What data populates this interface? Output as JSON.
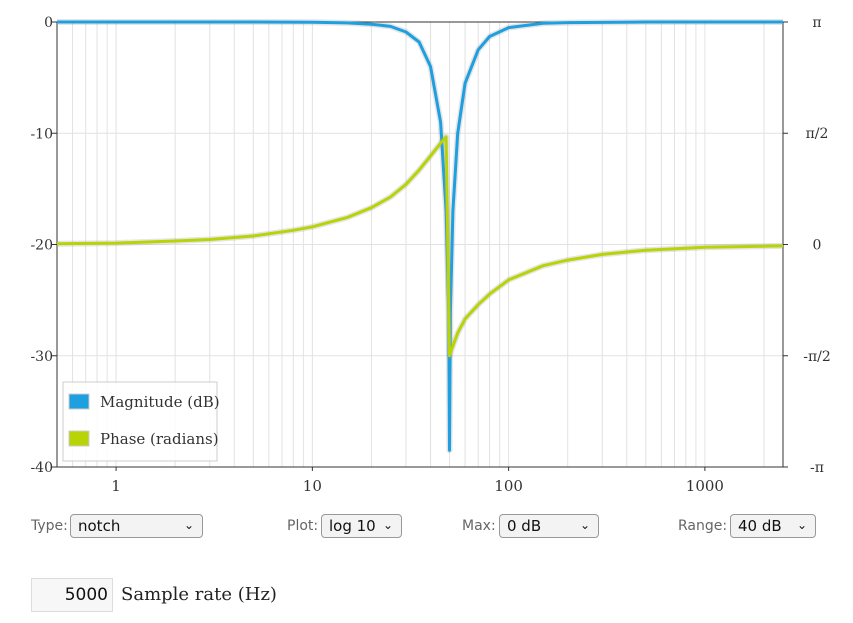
{
  "chart_data": {
    "type": "line",
    "x_scale": "log",
    "xlim": [
      0.5,
      2500
    ],
    "x_ticks": [
      1,
      10,
      100,
      1000
    ],
    "x_tick_labels": [
      "1",
      "10",
      "100",
      "1000"
    ],
    "y_left_lim": [
      -40,
      0
    ],
    "y_left_ticks": [
      0,
      -10,
      -20,
      -30,
      -40
    ],
    "y_left_tick_labels": [
      "0",
      "-10",
      "-20",
      "-30",
      "-40"
    ],
    "y_right_ticks": [
      3.14159,
      1.5708,
      0,
      -1.5708,
      -3.14159
    ],
    "y_right_tick_labels": [
      "π",
      "π/2",
      "0",
      "-π/2",
      "-π"
    ],
    "grid": true,
    "legend_position": "bottom-left",
    "series": [
      {
        "name": "Magnitude (dB)",
        "axis": "left",
        "color": "#1e9fe0",
        "points": [
          [
            0.5,
            0
          ],
          [
            1,
            0
          ],
          [
            2,
            0
          ],
          [
            5,
            0
          ],
          [
            10,
            -0.03
          ],
          [
            15,
            -0.08
          ],
          [
            20,
            -0.2
          ],
          [
            25,
            -0.4
          ],
          [
            30,
            -0.9
          ],
          [
            35,
            -1.8
          ],
          [
            40,
            -4
          ],
          [
            45,
            -9
          ],
          [
            48,
            -17
          ],
          [
            49.5,
            -26
          ],
          [
            50,
            -38.5
          ],
          [
            50.5,
            -26
          ],
          [
            52,
            -17
          ],
          [
            55,
            -10
          ],
          [
            60,
            -5.5
          ],
          [
            70,
            -2.5
          ],
          [
            80,
            -1.3
          ],
          [
            100,
            -0.5
          ],
          [
            150,
            -0.12
          ],
          [
            200,
            -0.05
          ],
          [
            500,
            0
          ],
          [
            1000,
            0
          ],
          [
            2500,
            0
          ]
        ]
      },
      {
        "name": "Phase (radians)",
        "axis": "right",
        "color": "#b8d406",
        "points": [
          [
            0.5,
            0.01
          ],
          [
            1,
            0.02
          ],
          [
            2,
            0.05
          ],
          [
            3,
            0.07
          ],
          [
            5,
            0.12
          ],
          [
            8,
            0.2
          ],
          [
            10,
            0.25
          ],
          [
            15,
            0.38
          ],
          [
            20,
            0.52
          ],
          [
            25,
            0.67
          ],
          [
            30,
            0.85
          ],
          [
            35,
            1.05
          ],
          [
            40,
            1.25
          ],
          [
            45,
            1.43
          ],
          [
            48,
            1.52
          ],
          [
            50,
            -1.57
          ],
          [
            51,
            -1.5
          ],
          [
            55,
            -1.25
          ],
          [
            60,
            -1.05
          ],
          [
            70,
            -0.85
          ],
          [
            80,
            -0.7
          ],
          [
            100,
            -0.5
          ],
          [
            150,
            -0.3
          ],
          [
            200,
            -0.22
          ],
          [
            300,
            -0.14
          ],
          [
            500,
            -0.08
          ],
          [
            1000,
            -0.04
          ],
          [
            2500,
            -0.02
          ]
        ]
      }
    ]
  },
  "controls": {
    "type_label": "Type:",
    "type_value": "notch",
    "plot_label": "Plot:",
    "plot_value": "log 10",
    "max_label": "Max:",
    "max_value": "0 dB",
    "range_label": "Range:",
    "range_value": "40 dB",
    "sample_rate_value": "5000",
    "sample_rate_label": "Sample rate (Hz)"
  }
}
